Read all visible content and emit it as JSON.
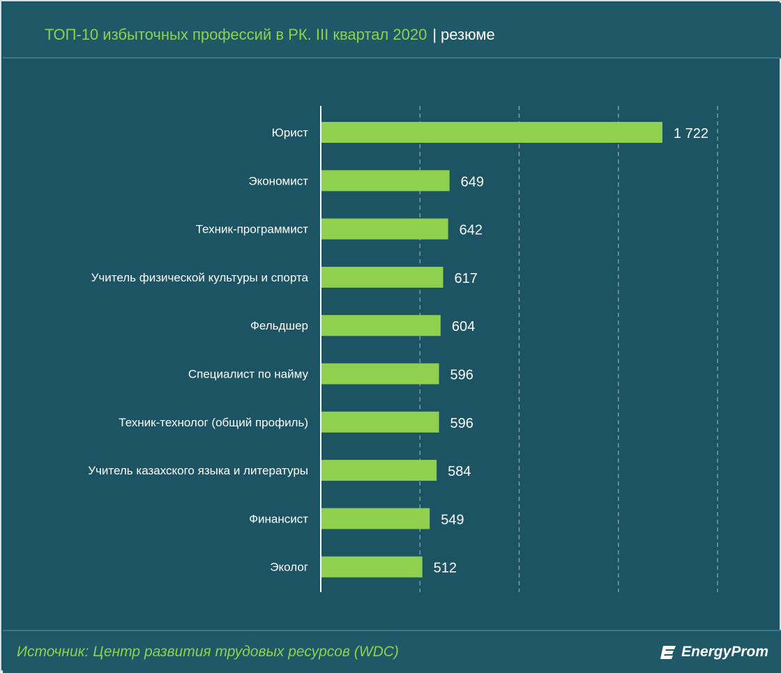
{
  "header": {
    "title": "ТОП-10 избыточных профессий в РК.  III квартал 2020",
    "separator": "|",
    "subtitle": "резюме"
  },
  "chart_data": {
    "type": "bar",
    "orientation": "horizontal",
    "categories": [
      "Юрист",
      "Экономист",
      "Техник-программист",
      "Учитель физической культуры и спорта",
      "Фельдшер",
      "Специалист по найму",
      "Техник-технолог (общий профиль)",
      "Учитель казахского языка и литературы",
      "Финансист",
      "Эколог"
    ],
    "values": [
      1722,
      649,
      642,
      617,
      604,
      596,
      596,
      584,
      549,
      512
    ],
    "value_labels": [
      "1 722",
      "649",
      "642",
      "617",
      "604",
      "596",
      "596",
      "584",
      "549",
      "512"
    ],
    "xlim": [
      0,
      2000
    ],
    "gridlines": [
      500,
      1000,
      1500,
      2000
    ],
    "grid": true,
    "colors": {
      "bar": "#8fd14f",
      "background": "#1d5464",
      "text": "#ffffff",
      "title": "#8fd14f"
    }
  },
  "footer": {
    "source": "Источник: Центр развития трудовых ресурсов (WDC)",
    "logo_text": "EnergyProm",
    "logo_icon": "energyprom-logo-icon"
  }
}
